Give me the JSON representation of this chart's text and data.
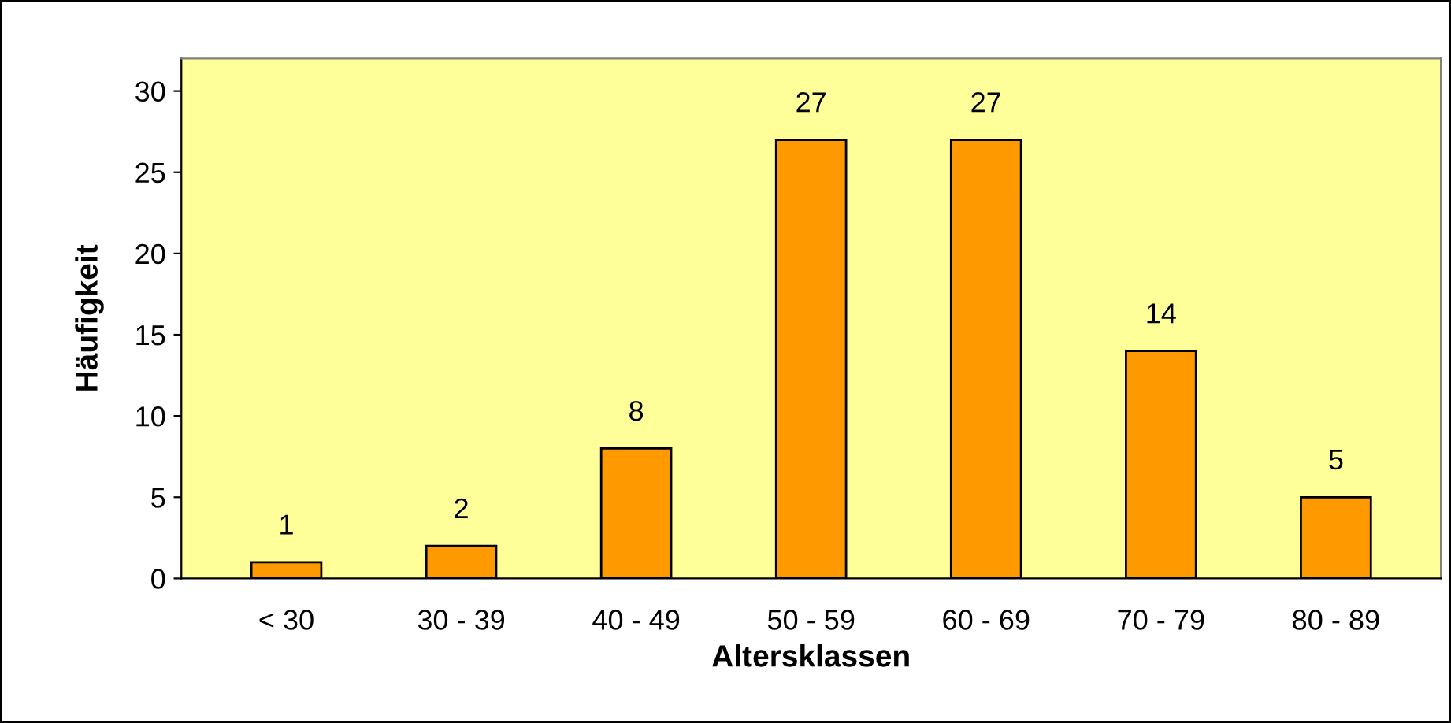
{
  "chart_data": {
    "type": "bar",
    "xlabel": "Altersklassen",
    "ylabel": "Häufigkeit",
    "categories": [
      "< 30",
      "30 - 39",
      "40 - 49",
      "50 - 59",
      "60 - 69",
      "70 - 79",
      "80 - 89"
    ],
    "values": [
      1,
      2,
      8,
      27,
      27,
      14,
      5
    ],
    "color": "#ff9900",
    "ylim": [
      0,
      32
    ],
    "yticks": [
      0,
      5,
      10,
      15,
      20,
      25,
      30
    ],
    "grid": false,
    "data_labels": true,
    "legend": false
  }
}
